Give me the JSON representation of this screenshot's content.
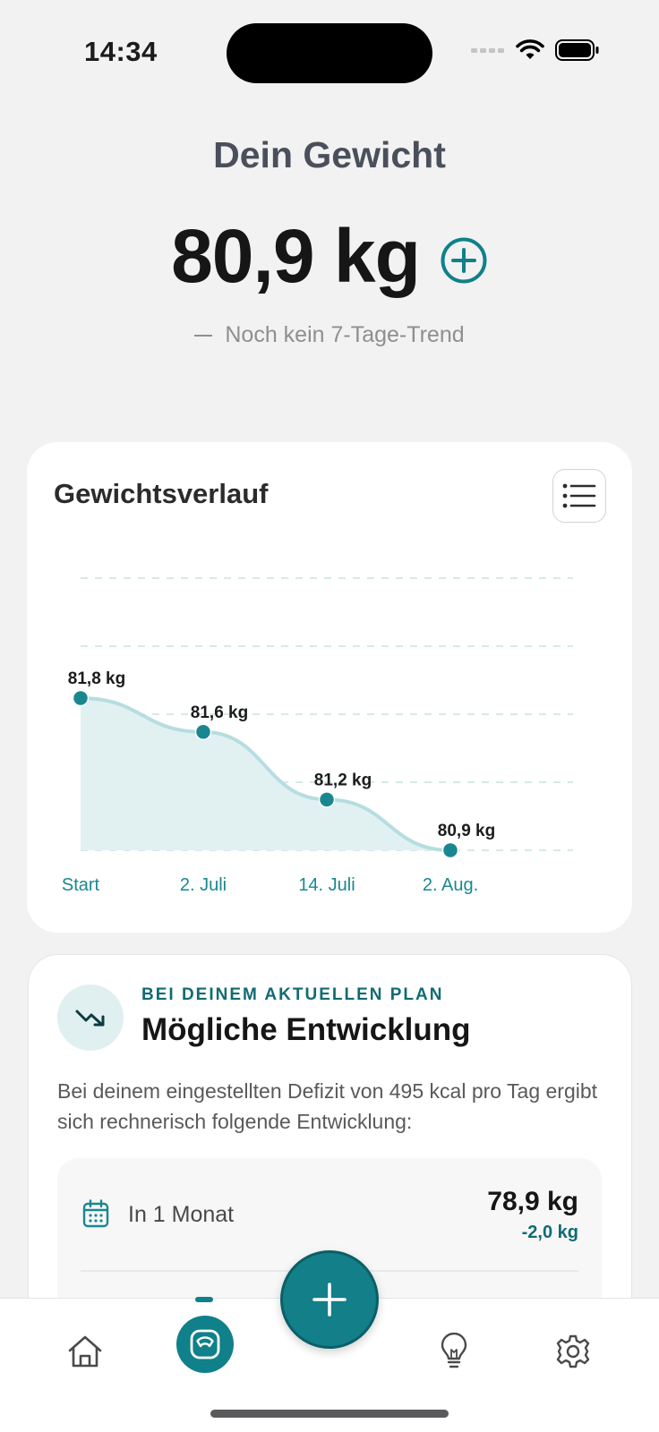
{
  "status_bar": {
    "time": "14:34"
  },
  "header": {
    "title": "Dein Gewicht",
    "current_weight": "80,9 kg",
    "trend_text": "Noch kein 7-Tage-Trend"
  },
  "chart_card": {
    "title": "Gewichtsverlauf"
  },
  "chart_data": {
    "type": "area",
    "categories": [
      "Start",
      "2. Juli",
      "14. Juli",
      "2. Aug."
    ],
    "values": [
      81.8,
      81.6,
      81.2,
      80.9
    ],
    "data_labels": [
      "81,8 kg",
      "81,6 kg",
      "81,2 kg",
      "80,9 kg"
    ],
    "unit": "kg",
    "grid": "horizontal-dashed",
    "colors": {
      "line": "#b6dde0",
      "fill": "#e1f1f2",
      "point": "#1a8790"
    }
  },
  "plan_card": {
    "eyebrow": "BEI DEINEM AKTUELLEN PLAN",
    "title": "Mögliche Entwicklung",
    "description": "Bei deinem eingestellten Defizit von 495 kcal pro Tag ergibt sich rechnerisch folgende Entwicklung:",
    "projections": [
      {
        "label": "In 1 Monat",
        "weight": "78,9 kg",
        "delta": "-2,0 kg"
      }
    ]
  },
  "tab_bar": {
    "items": [
      {
        "name": "home",
        "icon": "home-icon"
      },
      {
        "name": "weight",
        "icon": "scale-icon",
        "active": true
      },
      {
        "name": "add",
        "icon": "plus-icon"
      },
      {
        "name": "tips",
        "icon": "lightbulb-icon"
      },
      {
        "name": "settings",
        "icon": "gear-icon"
      }
    ]
  },
  "colors": {
    "accent": "#10808a",
    "accent_dark": "#116b73",
    "background": "#f2f2f2"
  }
}
